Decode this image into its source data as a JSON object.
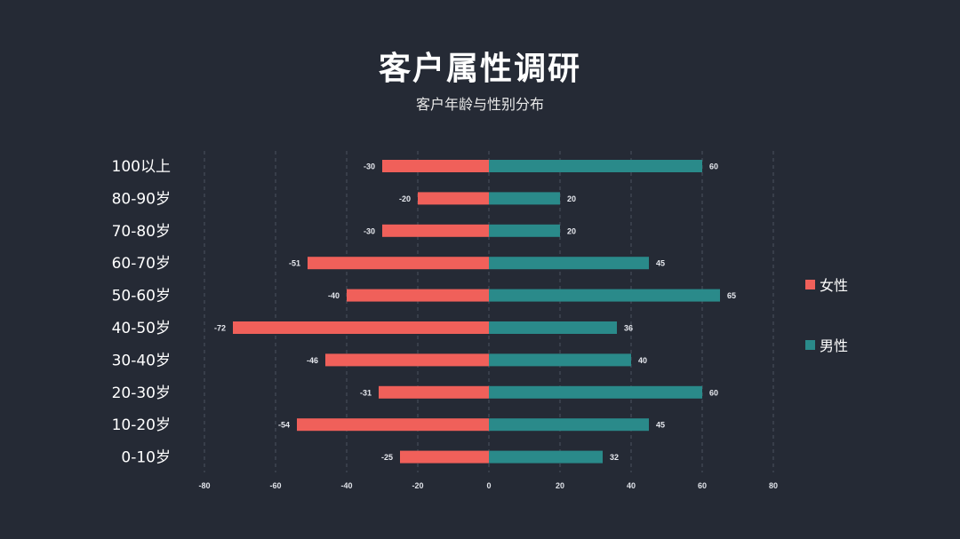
{
  "title": "客户属性调研",
  "subtitle": "客户年龄与性别分布",
  "chart_data": {
    "type": "bar",
    "orientation": "horizontal",
    "stacked_diverging": true,
    "categories": [
      "100以上",
      "80-90岁",
      "70-80岁",
      "60-70岁",
      "50-60岁",
      "40-50岁",
      "30-40岁",
      "20-30岁",
      "10-20岁",
      "0-10岁"
    ],
    "series": [
      {
        "name": "女性",
        "color": "#f0605a",
        "values": [
          -30,
          -20,
          -30,
          -51,
          -40,
          -72,
          -46,
          -31,
          -54,
          -25
        ]
      },
      {
        "name": "男性",
        "color": "#2a8a8a",
        "values": [
          60,
          20,
          20,
          45,
          65,
          36,
          40,
          60,
          45,
          32
        ]
      }
    ],
    "xlim": [
      -80,
      80
    ],
    "xticks": [
      -80,
      -60,
      -40,
      -20,
      0,
      20,
      40,
      60,
      80
    ],
    "grid": true,
    "legend_position": "right"
  },
  "legend": {
    "items": [
      {
        "label": "女性",
        "color": "#f0605a"
      },
      {
        "label": "男性",
        "color": "#2a8a8a"
      }
    ]
  }
}
